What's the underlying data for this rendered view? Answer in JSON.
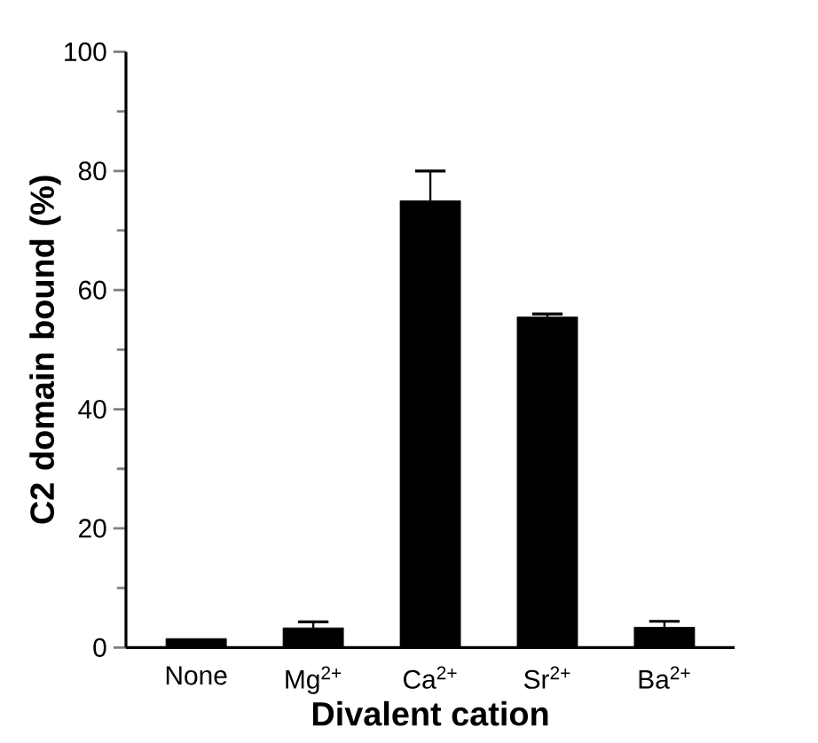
{
  "chart_data": {
    "type": "bar",
    "xlabel": "Divalent cation",
    "ylabel": "C2 domain bound (%)",
    "categories": [
      "None",
      "Mg$^{2+}$",
      "Ca$^{2+}$",
      "Sr$^{2+}$",
      "Ba$^{2+}$"
    ],
    "values": [
      1.5,
      3.3,
      75,
      55.5,
      3.4
    ],
    "errors": [
      null,
      1,
      5,
      0.5,
      1
    ],
    "color": "#000000",
    "ylim": [
      0,
      100
    ],
    "yticks": [
      0,
      20,
      40,
      60,
      80,
      100
    ],
    "grid": false
  }
}
